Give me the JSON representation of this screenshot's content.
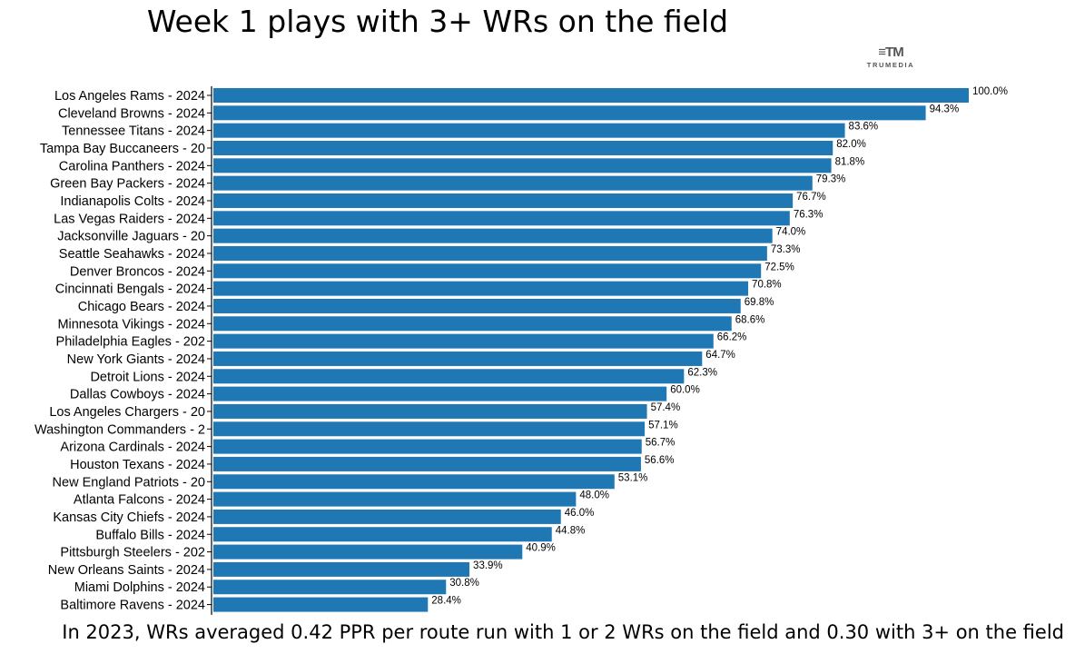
{
  "logo": {
    "mark": "≡TM",
    "wordmark": "TRUMEDIA"
  },
  "chart_data": {
    "type": "bar",
    "orientation": "horizontal",
    "title": "Week 1 plays with 3+ WRs on the field",
    "footnote": "In 2023, WRs averaged 0.42 PPR per route run with 1 or 2 WRs on the field and 0.30 with 3+ on the field",
    "xlabel": "",
    "ylabel": "",
    "xlim": [
      0,
      100
    ],
    "grid": false,
    "value_suffix": "%",
    "bar_color": "#1f77b4",
    "categories": [
      "Los Angeles Rams - 2024",
      "Cleveland Browns - 2024",
      "Tennessee Titans - 2024",
      "Tampa Bay Buccaneers - 20",
      "Carolina Panthers - 2024",
      "Green Bay Packers - 2024",
      "Indianapolis Colts - 2024",
      "Las Vegas Raiders - 2024",
      "Jacksonville Jaguars - 20",
      "Seattle Seahawks - 2024",
      "Denver Broncos - 2024",
      "Cincinnati Bengals - 2024",
      "Chicago Bears - 2024",
      "Minnesota Vikings - 2024",
      "Philadelphia Eagles - 202",
      "New York Giants - 2024",
      "Detroit Lions - 2024",
      "Dallas Cowboys - 2024",
      "Los Angeles Chargers - 20",
      "Washington Commanders - 2",
      "Arizona Cardinals - 2024",
      "Houston Texans - 2024",
      "New England Patriots - 20",
      "Atlanta Falcons - 2024",
      "Kansas City Chiefs - 2024",
      "Buffalo Bills - 2024",
      "Pittsburgh Steelers - 202",
      "New Orleans Saints - 2024",
      "Miami Dolphins - 2024",
      "Baltimore Ravens - 2024"
    ],
    "values": [
      100.0,
      94.3,
      83.6,
      82.0,
      81.8,
      79.3,
      76.7,
      76.3,
      74.0,
      73.3,
      72.5,
      70.8,
      69.8,
      68.6,
      66.2,
      64.7,
      62.3,
      60.0,
      57.4,
      57.1,
      56.7,
      56.6,
      53.1,
      48.0,
      46.0,
      44.8,
      40.9,
      33.9,
      30.8,
      28.4
    ]
  }
}
